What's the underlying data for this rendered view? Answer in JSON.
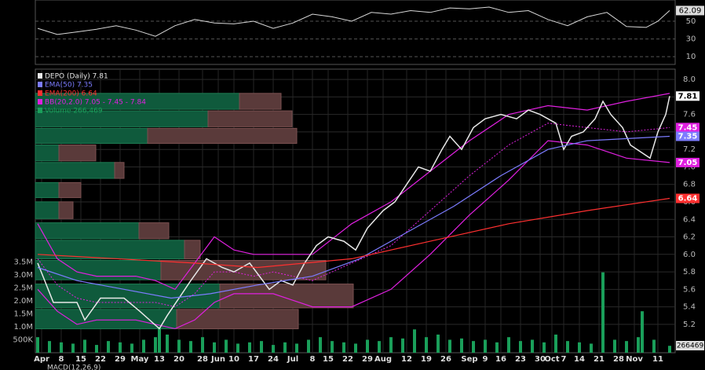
{
  "chart_data": {
    "type": "stock",
    "xlim": [
      0,
      162
    ],
    "xticks": [
      {
        "value": 1,
        "label": "Apr"
      },
      {
        "value": 6,
        "label": "8"
      },
      {
        "value": 11,
        "label": "15"
      },
      {
        "value": 16,
        "label": "22"
      },
      {
        "value": 21,
        "label": "29"
      },
      {
        "value": 26,
        "label": "May"
      },
      {
        "value": 31,
        "label": "13"
      },
      {
        "value": 36,
        "label": "20"
      },
      {
        "value": 42,
        "label": "28"
      },
      {
        "value": 46,
        "label": "Jun"
      },
      {
        "value": 50,
        "label": "10"
      },
      {
        "value": 55,
        "label": "17"
      },
      {
        "value": 60,
        "label": "24"
      },
      {
        "value": 65,
        "label": "Jul"
      },
      {
        "value": 70,
        "label": "8"
      },
      {
        "value": 74,
        "label": "15"
      },
      {
        "value": 79,
        "label": "22"
      },
      {
        "value": 84,
        "label": "29"
      },
      {
        "value": 88,
        "label": "Aug"
      },
      {
        "value": 94,
        "label": "12"
      },
      {
        "value": 99,
        "label": "19"
      },
      {
        "value": 104,
        "label": "26"
      },
      {
        "value": 110,
        "label": "Sep"
      },
      {
        "value": 114,
        "label": "9"
      },
      {
        "value": 118,
        "label": "16"
      },
      {
        "value": 123,
        "label": "23"
      },
      {
        "value": 128,
        "label": "30"
      },
      {
        "value": 131,
        "label": "Oct"
      },
      {
        "value": 134,
        "label": "7"
      },
      {
        "value": 138,
        "label": "14"
      },
      {
        "value": 143,
        "label": "21"
      },
      {
        "value": 148,
        "label": "28"
      },
      {
        "value": 152,
        "label": "Nov"
      },
      {
        "value": 158,
        "label": "11"
      }
    ],
    "ylim": [
      5.1,
      8.1
    ],
    "yticks": [
      {
        "value": 8,
        "label": "8.0"
      },
      7.8,
      7.6,
      7.4,
      7.2,
      {
        "value": 7,
        "label": "7.0"
      },
      6.8,
      6.6,
      6.4,
      6.2,
      {
        "value": 6,
        "label": "6.0"
      },
      5.8,
      5.6,
      5.4,
      5.2
    ],
    "grid": true,
    "series": [
      {
        "name": "DEPO (Daily) 7.81",
        "color": "#e8e8e8",
        "x": [
          0,
          4,
          10,
          12,
          16,
          22,
          26,
          31,
          33,
          36,
          39,
          43,
          47,
          50,
          54,
          59,
          62,
          65,
          68,
          71,
          74,
          78,
          81,
          84,
          88,
          91,
          94,
          97,
          100,
          103,
          105,
          108,
          111,
          114,
          118,
          122,
          125,
          128,
          132,
          134,
          136,
          139,
          142,
          144,
          146,
          149,
          151,
          156,
          158,
          160,
          161
        ],
        "values": [
          5.9,
          5.45,
          5.45,
          5.25,
          5.5,
          5.5,
          5.35,
          5.15,
          5.3,
          5.5,
          5.7,
          5.95,
          5.85,
          5.8,
          5.9,
          5.6,
          5.7,
          5.65,
          5.9,
          6.1,
          6.2,
          6.15,
          6.05,
          6.3,
          6.5,
          6.6,
          6.8,
          7.0,
          6.95,
          7.2,
          7.35,
          7.2,
          7.45,
          7.55,
          7.6,
          7.55,
          7.65,
          7.6,
          7.5,
          7.2,
          7.35,
          7.4,
          7.55,
          7.75,
          7.6,
          7.45,
          7.25,
          7.1,
          7.4,
          7.6,
          7.81
        ]
      },
      {
        "name": "EMA(50) 7.35",
        "color": "#7c7cff",
        "x": [
          0,
          10,
          22,
          34,
          44,
          56,
          70,
          82,
          92,
          106,
          118,
          130,
          140,
          161
        ],
        "values": [
          5.85,
          5.7,
          5.6,
          5.5,
          5.55,
          5.65,
          5.75,
          5.95,
          6.2,
          6.55,
          6.9,
          7.2,
          7.3,
          7.35
        ]
      },
      {
        "name": "EMA(200) 6.64",
        "color": "#ff3030",
        "x": [
          0,
          40,
          56,
          80,
          100,
          120,
          140,
          161
        ],
        "values": [
          6.0,
          5.9,
          5.85,
          5.95,
          6.15,
          6.35,
          6.5,
          6.64
        ]
      }
    ],
    "bollinger": {
      "name": "BB(20,2.0) 7.05 - 7.45 - 7.84",
      "color": "#e020e0",
      "x": [
        0,
        5,
        10,
        15,
        20,
        25,
        30,
        35,
        40,
        45,
        50,
        55,
        60,
        70,
        80,
        90,
        100,
        110,
        120,
        130,
        140,
        150,
        161
      ],
      "upper": [
        6.35,
        5.95,
        5.8,
        5.75,
        5.75,
        5.75,
        5.7,
        5.6,
        5.9,
        6.2,
        6.05,
        6.0,
        6.0,
        6.0,
        6.35,
        6.6,
        6.95,
        7.3,
        7.6,
        7.7,
        7.65,
        7.75,
        7.84
      ],
      "middle": [
        5.95,
        5.65,
        5.5,
        5.45,
        5.45,
        5.45,
        5.45,
        5.4,
        5.55,
        5.8,
        5.8,
        5.75,
        5.8,
        5.7,
        5.9,
        6.1,
        6.5,
        6.9,
        7.25,
        7.5,
        7.45,
        7.4,
        7.45
      ],
      "lower": [
        5.6,
        5.35,
        5.2,
        5.25,
        5.25,
        5.25,
        5.2,
        5.15,
        5.25,
        5.45,
        5.55,
        5.55,
        5.55,
        5.4,
        5.4,
        5.6,
        6.0,
        6.45,
        6.85,
        7.3,
        7.25,
        7.1,
        7.05
      ]
    },
    "volume": {
      "name": "Volume 266,469",
      "color": "#1a9f5a",
      "ylim": [
        0,
        4000000
      ],
      "yticks": [
        {
          "value": 500000,
          "label": "500K"
        },
        {
          "value": 1000000,
          "label": "1.0M"
        },
        {
          "value": 1500000,
          "label": "1.5M"
        },
        {
          "value": 2000000,
          "label": "2.0M"
        },
        {
          "value": 2500000,
          "label": "2.5M"
        },
        {
          "value": 3000000,
          "label": "3.0M"
        },
        {
          "value": 3500000,
          "label": "3.5M"
        }
      ],
      "x": [
        0,
        3,
        6,
        9,
        12,
        15,
        18,
        21,
        24,
        27,
        30,
        31,
        33,
        36,
        39,
        42,
        45,
        48,
        51,
        54,
        57,
        60,
        63,
        66,
        69,
        72,
        75,
        78,
        81,
        84,
        87,
        90,
        93,
        96,
        99,
        102,
        105,
        108,
        111,
        114,
        117,
        120,
        123,
        126,
        129,
        132,
        135,
        138,
        141,
        144,
        147,
        150,
        153,
        154,
        157,
        161
      ],
      "values": [
        600000,
        450000,
        400000,
        350000,
        500000,
        300000,
        450000,
        400000,
        350000,
        500000,
        600000,
        1000000,
        700000,
        500000,
        450000,
        600000,
        400000,
        500000,
        350000,
        400000,
        450000,
        300000,
        400000,
        350000,
        500000,
        600000,
        450000,
        400000,
        350000,
        500000,
        450000,
        600000,
        550000,
        900000,
        600000,
        700000,
        500000,
        550000,
        450000,
        500000,
        400000,
        600000,
        450000,
        500000,
        400000,
        700000,
        450000,
        400000,
        350000,
        3100000,
        500000,
        450000,
        600000,
        1600000,
        500000,
        266469
      ]
    },
    "volume_profile": {
      "up_color": "#0f5a3c",
      "down_color": "#5a3a3a",
      "xlim": [
        0,
        420
      ],
      "low": [
        7.65,
        7.45,
        7.26,
        7.06,
        6.86,
        6.64,
        6.4,
        6.17,
        5.94,
        5.7,
        5.38,
        5.14
      ],
      "high": [
        7.85,
        7.65,
        7.45,
        7.26,
        7.06,
        6.83,
        6.61,
        6.37,
        6.17,
        5.94,
        5.67,
        5.38
      ],
      "up": [
        260,
        220,
        143,
        30,
        101,
        30,
        30,
        132,
        190,
        160,
        235,
        180
      ],
      "down": [
        53,
        107,
        190,
        47,
        12,
        28,
        18,
        38,
        20,
        210,
        170,
        155
      ]
    },
    "rsi": {
      "color": "#d8d8d8",
      "ylim": [
        3,
        74
      ],
      "yticks": [
        10,
        30,
        50
      ],
      "x": [
        0,
        5,
        10,
        15,
        20,
        25,
        30,
        35,
        40,
        45,
        50,
        55,
        60,
        65,
        70,
        75,
        80,
        85,
        90,
        95,
        100,
        105,
        110,
        115,
        120,
        125,
        130,
        135,
        140,
        145,
        150,
        155,
        158,
        161
      ],
      "values": [
        42,
        35,
        38,
        41,
        45,
        40,
        33,
        45,
        52,
        48,
        47,
        50,
        42,
        48,
        58,
        55,
        50,
        60,
        58,
        62,
        60,
        65,
        64,
        66,
        60,
        62,
        52,
        45,
        55,
        60,
        44,
        43,
        50,
        62.09
      ]
    },
    "footer": "MACD(12,26,9)"
  }
}
